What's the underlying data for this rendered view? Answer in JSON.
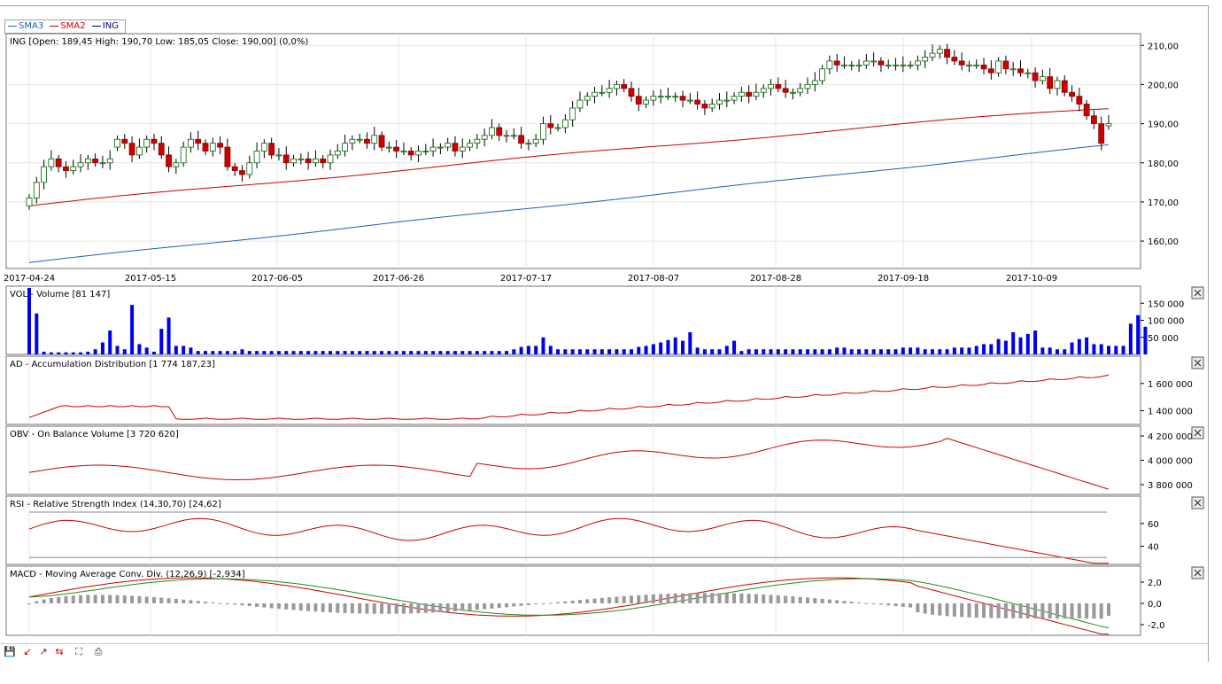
{
  "legend": [
    {
      "label": "SMA3",
      "color": "#1f5fbf"
    },
    {
      "label": "SMA2",
      "color": "#cc0000"
    },
    {
      "label": "ING",
      "color": "#000080"
    }
  ],
  "panels": {
    "price": {
      "title": "ING [Open: 189,45  High: 190,70  Low: 185,05  Close: 190,00] (0,0%)"
    },
    "vol": {
      "title": "VOL - Volume [81 147]"
    },
    "ad": {
      "title": "AD - Accumulation Distribution [1 774 187,23]"
    },
    "obv": {
      "title": "OBV - On Balance Volume [3 720 620]"
    },
    "rsi": {
      "title": "RSI - Relative Strength Index (14,30,70) [24,62]"
    },
    "macd": {
      "title": "MACD - Moving Average Conv. Div. (12,26,9) [-2,934]"
    }
  },
  "toolbar": [
    "save-icon",
    "zoom-in-icon",
    "zoom-out-icon",
    "zoom-reset-icon",
    "fit-icon",
    "print-icon"
  ],
  "chart_data": [
    {
      "type": "candlestick",
      "title": "ING [Open: 189,45  High: 190,70  Low: 185,05  Close: 190,00] (0,0%)",
      "x_tick_labels": [
        "2017-04-24",
        "2017-05-15",
        "2017-06-05",
        "2017-06-26",
        "2017-07-17",
        "2017-08-07",
        "2017-08-28",
        "2017-09-18",
        "2017-10-09"
      ],
      "y_tick_labels": [
        "210,00",
        "200,00",
        "190,00",
        "180,00",
        "170,00",
        "160,00"
      ],
      "ylim": [
        153,
        213
      ],
      "closes": [
        171,
        175,
        179,
        181,
        179,
        178,
        179,
        180,
        181,
        180,
        180,
        181,
        186,
        185,
        182,
        184,
        186,
        185,
        182,
        179,
        180,
        184,
        186,
        185,
        183,
        185,
        184,
        179,
        178,
        177,
        180,
        183,
        185,
        182,
        182,
        180,
        181,
        181,
        180,
        181,
        180,
        182,
        183,
        185,
        186,
        186,
        185,
        187,
        184,
        184,
        183,
        183,
        182,
        183,
        183,
        184,
        184,
        185,
        183,
        184,
        185,
        186,
        187,
        189,
        187,
        187,
        187,
        185,
        185,
        186,
        190,
        189,
        189,
        191,
        194,
        196,
        197,
        198,
        198,
        199,
        200,
        199,
        197,
        195,
        196,
        197,
        197,
        197,
        197,
        196,
        196,
        195,
        194,
        195,
        196,
        196,
        197,
        198,
        197,
        198,
        199,
        200,
        199,
        198,
        198,
        199,
        200,
        201,
        204,
        206,
        205,
        205,
        205,
        205,
        206,
        206,
        205,
        205,
        205,
        205,
        205,
        206,
        207,
        208,
        209,
        207,
        206,
        205,
        205,
        205,
        204,
        203,
        206,
        204,
        204,
        203,
        203,
        201,
        202,
        199,
        201,
        198,
        197,
        195,
        192,
        190,
        185,
        190
      ],
      "opens": [
        169,
        171,
        175,
        179,
        181,
        179,
        178,
        179,
        180,
        181,
        180,
        180,
        184,
        186,
        185,
        182,
        184,
        186,
        185,
        182,
        179,
        180,
        184,
        186,
        185,
        183,
        185,
        184,
        179,
        178,
        177,
        180,
        183,
        185,
        182,
        182,
        180,
        181,
        181,
        180,
        181,
        180,
        182,
        183,
        185,
        186,
        186,
        185,
        187,
        184,
        184,
        183,
        183,
        182,
        183,
        183,
        184,
        184,
        185,
        183,
        184,
        185,
        186,
        187,
        189,
        187,
        187,
        187,
        185,
        185,
        186,
        190,
        189,
        189,
        191,
        194,
        196,
        197,
        198,
        198,
        199,
        200,
        199,
        197,
        195,
        196,
        197,
        197,
        197,
        197,
        196,
        196,
        195,
        194,
        195,
        196,
        196,
        197,
        198,
        197,
        198,
        199,
        200,
        199,
        198,
        198,
        199,
        200,
        201,
        204,
        206,
        205,
        205,
        205,
        205,
        206,
        206,
        205,
        205,
        205,
        205,
        205,
        206,
        207,
        208,
        209,
        207,
        206,
        205,
        205,
        205,
        204,
        203,
        206,
        204,
        204,
        203,
        203,
        201,
        202,
        199,
        201,
        198,
        197,
        195,
        192,
        190,
        189.45
      ],
      "series": [
        {
          "name": "SMA2",
          "from": 169,
          "to": 194
        },
        {
          "name": "SMA3",
          "from": 154.5,
          "to": 184.5
        }
      ]
    },
    {
      "type": "bar",
      "title": "VOL - Volume [81 147]",
      "y_tick_labels": [
        "150 000",
        "100 000",
        "50 000"
      ],
      "ylim": [
        0,
        200000
      ],
      "values": [
        195000,
        120000,
        8000,
        6000,
        6000,
        6000,
        6000,
        6000,
        8000,
        15000,
        35000,
        70000,
        25000,
        15000,
        145000,
        30000,
        20000,
        8000,
        75000,
        108000,
        25000,
        25000,
        20000,
        10000,
        10000,
        10000,
        10000,
        10000,
        10000,
        15000,
        10000,
        10000,
        10000,
        10000,
        10000,
        10000,
        10000,
        10000,
        10000,
        10000,
        10000,
        10000,
        10000,
        10000,
        10000,
        10000,
        10000,
        10000,
        10000,
        10000,
        10000,
        10000,
        10000,
        10000,
        10000,
        10000,
        10000,
        10000,
        10000,
        10000,
        10000,
        10000,
        10000,
        10000,
        10000,
        10000,
        15000,
        22000,
        25000,
        25000,
        50000,
        25000,
        15000,
        15000,
        15000,
        15000,
        15000,
        15000,
        15000,
        15000,
        15000,
        15000,
        15000,
        22000,
        25000,
        30000,
        35000,
        42000,
        50000,
        40000,
        65000,
        20000,
        15000,
        15000,
        15000,
        25000,
        40000,
        10000,
        15000,
        15000,
        15000,
        15000,
        15000,
        15000,
        15000,
        15000,
        15000,
        15000,
        15000,
        15000,
        20000,
        20000,
        15000,
        15000,
        15000,
        15000,
        15000,
        15000,
        15000,
        20000,
        20000,
        20000,
        15000,
        15000,
        15000,
        15000,
        20000,
        20000,
        20000,
        25000,
        30000,
        30000,
        45000,
        40000,
        65000,
        50000,
        60000,
        70000,
        20000,
        20000,
        15000,
        15000,
        35000,
        45000,
        50000,
        30000,
        30000,
        25000,
        25000,
        25000,
        90000,
        115000,
        81147
      ]
    },
    {
      "type": "line",
      "title": "AD - Accumulation Distribution [1 774 187,23]",
      "y_tick_labels": [
        "1 600 000",
        "1 400 000"
      ],
      "ylim": [
        1300000,
        1800000
      ]
    },
    {
      "type": "line",
      "title": "OBV - On Balance Volume [3 720 620]",
      "y_tick_labels": [
        "4 200 000",
        "4 000 000",
        "3 800 000"
      ],
      "ylim": [
        3720000,
        4280000
      ]
    },
    {
      "type": "line",
      "title": "RSI - Relative Strength Index (14,30,70) [24,62]",
      "y_tick_labels": [
        "60",
        "40"
      ],
      "ylim": [
        24,
        84
      ],
      "reference_lines": [
        30,
        70
      ]
    },
    {
      "type": "line",
      "title": "MACD - Moving Average Conv. Div. (12,26,9) [-2,934]",
      "y_tick_labels": [
        "2,0",
        "0,0",
        "-2,0"
      ],
      "ylim": [
        -3,
        3.5
      ]
    }
  ]
}
